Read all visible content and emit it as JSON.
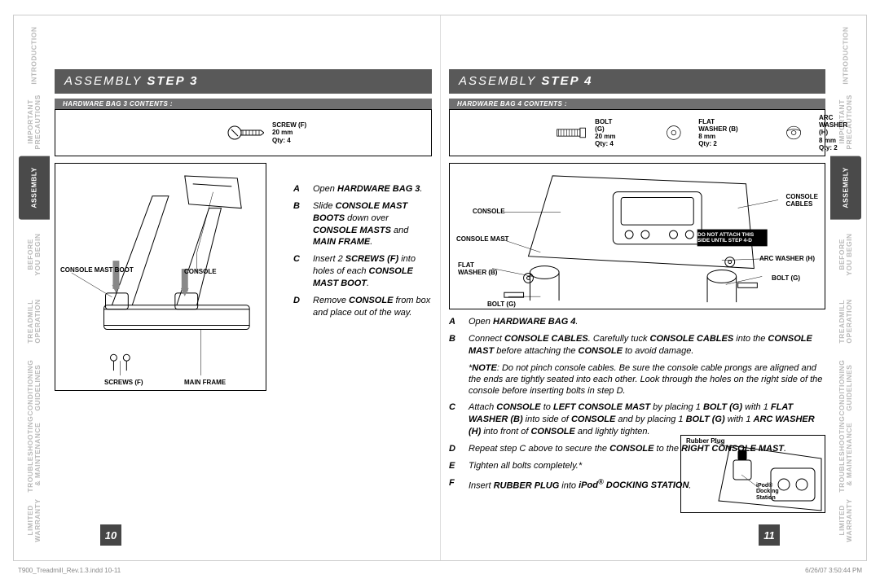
{
  "tabs": [
    {
      "label": "INTRODUCTION",
      "active": false
    },
    {
      "label": "IMPORTANT\nPRECAUTIONS",
      "active": false
    },
    {
      "label": "ASSEMBLY",
      "active": true
    },
    {
      "label": "BEFORE\nYOU BEGIN",
      "active": false
    },
    {
      "label": "TREADMILL\nOPERATION",
      "active": false
    },
    {
      "label": "CONDITIONING\nGUIDELINES",
      "active": false
    },
    {
      "label": "TROUBLESHOOTING\n& MAINTENANCE",
      "active": false
    },
    {
      "label": "LIMITED\nWARRANTY",
      "active": false
    }
  ],
  "left": {
    "title_prefix": "ASSEMBLY ",
    "title_step": "STEP 3",
    "hw_header": "HARDWARE BAG 3 CONTENTS :",
    "hw_items": [
      {
        "name": "SCREW (F)",
        "size": "20 mm",
        "qty": "Qty: 4",
        "icon": "screw"
      }
    ],
    "fig_callouts": {
      "console_mast_boot": "CONSOLE MAST BOOT",
      "console": "CONSOLE",
      "screws": "SCREWS (F)",
      "main_frame": "MAIN FRAME"
    },
    "steps": [
      {
        "lab": "A",
        "html": "Open <b>HARDWARE BAG 3</b>."
      },
      {
        "lab": "B",
        "html": "Slide <b>CONSOLE MAST BOOTS</b> down over <b>CONSOLE MASTS</b> and <b>MAIN FRAME</b>."
      },
      {
        "lab": "C",
        "html": "Insert 2 <b>SCREWS (F)</b> into holes of each <b>CONSOLE MAST BOOT</b>."
      },
      {
        "lab": "D",
        "html": "Remove <b>CONSOLE</b> from box and place out of the way."
      }
    ],
    "page_num": "10"
  },
  "right": {
    "title_prefix": "ASSEMBLY ",
    "title_step": "STEP 4",
    "hw_header": "HARDWARE BAG 4 CONTENTS :",
    "hw_items": [
      {
        "name": "BOLT (G)",
        "size": "20 mm",
        "qty": "Qty: 4",
        "icon": "bolt"
      },
      {
        "name": "FLAT WASHER (B)",
        "size": "8 mm",
        "qty": "Qty: 2",
        "icon": "flatwasher"
      },
      {
        "name": "ARC WASHER (H)",
        "size": "8 mm",
        "qty": "Qty: 2",
        "icon": "arcwasher"
      }
    ],
    "fig_callouts": {
      "console": "CONSOLE",
      "console_mast": "CONSOLE MAST",
      "flat_washer": "FLAT\nWASHER (B)",
      "bolt1": "BOLT (G)",
      "console_cables": "CONSOLE\nCABLES",
      "arc_washer": "ARC WASHER (H)",
      "bolt2": "BOLT (G)",
      "warning": "DO NOT ATTACH THIS\nSIDE UNTIL STEP 4-D"
    },
    "steps": [
      {
        "lab": "A",
        "html": "Open <b>HARDWARE BAG 4</b>."
      },
      {
        "lab": "B",
        "html": "Connect <b>CONSOLE CABLES</b>. Carefully tuck <b>CONSOLE CABLES</b> into the <b>CONSOLE MAST</b> before attaching the <b>CONSOLE</b> to avoid damage."
      },
      {
        "note": true,
        "html": "*<b>NOTE</b>: Do not pinch console cables. Be sure the console cable prongs are aligned and the ends are tightly seated into each other. Look through the holes on the right side of the console before inserting bolts in step D."
      },
      {
        "lab": "C",
        "html": "Attach <b>CONSOLE</b> to <b>LEFT CONSOLE MAST</b> by placing 1 <b>BOLT (G)</b> with 1 <b>FLAT WASHER (B)</b> into side of <b>CONSOLE</b> and by placing 1 <b>BOLT (G)</b> with 1 <b>ARC WASHER (H)</b> into front of <b>CONSOLE</b> and lightly tighten."
      },
      {
        "lab": "D",
        "html": "Repeat step C above to secure the <b>CONSOLE</b> to the <b>RIGHT CONSOLE MAST</b>."
      },
      {
        "lab": "E",
        "html": "Tighten all bolts completely.*"
      },
      {
        "lab": "F",
        "html": "Insert <b>RUBBER PLUG</b> into <b>iPod<sup>®</sup> DOCKING STATION</b>."
      }
    ],
    "small_fig": {
      "rubber_plug": "Rubber Plug",
      "ipod": "iPod®\nDocking\nStation"
    },
    "page_num": "11"
  },
  "footer": {
    "left": "T900_Treadmill_Rev.1.3.indd   10-11",
    "right": "6/26/07   3:50:44 PM"
  },
  "colors": {
    "titlebar": "#595959",
    "hwbar": "#6f6f70",
    "tab_inactive": "#b9b9b9",
    "tab_active_bg": "#4a4a4a",
    "page_num_bg": "#464646"
  }
}
